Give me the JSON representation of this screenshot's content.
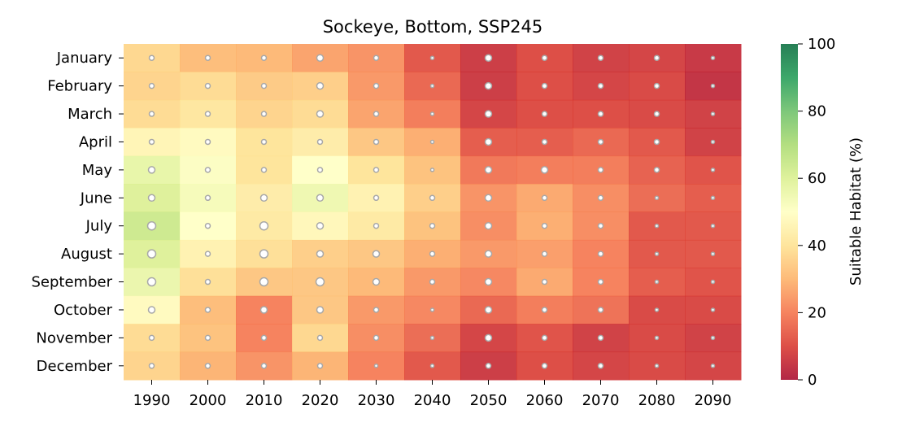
{
  "chart_data": {
    "type": "heatmap",
    "title": "Sockeye, Bottom, SSP245",
    "xlabel": "",
    "ylabel": "",
    "x": [
      "1990",
      "2000",
      "2010",
      "2020",
      "2030",
      "2040",
      "2050",
      "2060",
      "2070",
      "2080",
      "2090"
    ],
    "y": [
      "January",
      "February",
      "March",
      "April",
      "May",
      "June",
      "July",
      "August",
      "September",
      "October",
      "November",
      "December"
    ],
    "values": [
      [
        37,
        31,
        30,
        26,
        23,
        12,
        6,
        10,
        7,
        8,
        5
      ],
      [
        36,
        38,
        34,
        35,
        24,
        15,
        6,
        10,
        8,
        9,
        4
      ],
      [
        38,
        41,
        36,
        38,
        26,
        19,
        8,
        10,
        10,
        9,
        7
      ],
      [
        46,
        48,
        40,
        43,
        33,
        28,
        13,
        13,
        15,
        12,
        7
      ],
      [
        57,
        51,
        40,
        50,
        40,
        32,
        18,
        19,
        19,
        14,
        11
      ],
      [
        60,
        53,
        43,
        55,
        45,
        35,
        23,
        27,
        22,
        16,
        13
      ],
      [
        64,
        50,
        42,
        47,
        42,
        32,
        22,
        28,
        22,
        12,
        12
      ],
      [
        60,
        45,
        39,
        35,
        33,
        28,
        24,
        25,
        20,
        12,
        12
      ],
      [
        56,
        39,
        33,
        33,
        30,
        24,
        21,
        27,
        20,
        13,
        11
      ],
      [
        48,
        31,
        20,
        33,
        24,
        21,
        15,
        19,
        17,
        9,
        9
      ],
      [
        38,
        32,
        20,
        37,
        22,
        16,
        8,
        11,
        7,
        9,
        7
      ],
      [
        36,
        29,
        23,
        29,
        20,
        12,
        6,
        10,
        8,
        9,
        8
      ]
    ],
    "marker_sizes": [
      [
        3,
        3,
        3,
        4,
        3,
        2,
        4,
        3,
        3,
        3,
        2
      ],
      [
        3,
        3,
        3,
        4,
        3,
        2,
        4,
        3,
        3,
        3,
        2
      ],
      [
        3,
        3,
        3,
        4,
        3,
        2,
        4,
        3,
        3,
        3,
        2
      ],
      [
        3,
        3,
        3,
        3,
        3,
        2,
        4,
        3,
        3,
        3,
        2
      ],
      [
        4,
        3,
        3,
        3,
        3,
        2,
        4,
        4,
        3,
        3,
        2
      ],
      [
        4,
        3,
        4,
        4,
        3,
        3,
        4,
        3,
        3,
        2,
        2
      ],
      [
        5,
        3,
        5,
        4,
        3,
        3,
        4,
        3,
        3,
        2,
        2
      ],
      [
        5,
        3,
        5,
        4,
        4,
        3,
        4,
        3,
        3,
        2,
        2
      ],
      [
        5,
        3,
        5,
        5,
        4,
        3,
        4,
        3,
        3,
        2,
        2
      ],
      [
        4,
        3,
        4,
        4,
        3,
        2,
        4,
        3,
        3,
        2,
        2
      ],
      [
        3,
        3,
        3,
        3,
        3,
        2,
        4,
        3,
        3,
        2,
        2
      ],
      [
        3,
        3,
        3,
        3,
        2,
        2,
        3,
        3,
        3,
        2,
        2
      ]
    ],
    "colorbar": {
      "label": "Suitable Habitat (%)",
      "range": [
        0,
        100
      ],
      "ticks": [
        "0",
        "20",
        "40",
        "60",
        "80",
        "100"
      ],
      "colormap": "RdYlGn"
    },
    "grid": false
  }
}
